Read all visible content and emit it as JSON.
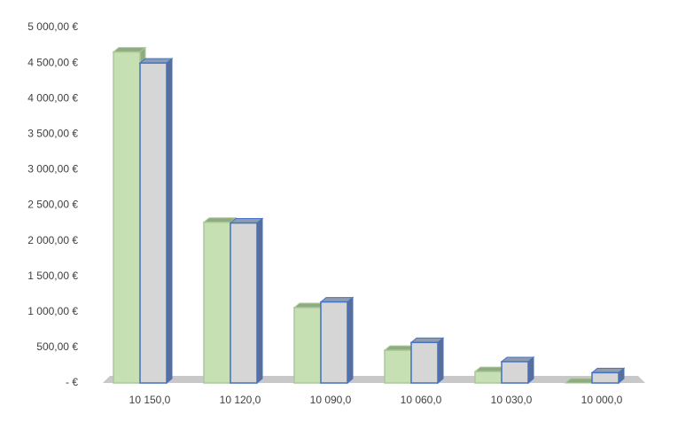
{
  "chart_data": {
    "type": "bar3d",
    "categories": [
      "10 150,0",
      "10 120,0",
      "10 090,0",
      "10 060,0",
      "10 030,0",
      "10 000,0"
    ],
    "series": [
      {
        "color": "#c6e0b4",
        "values": [
          4655,
          2260,
          1060,
          460,
          160,
          0
        ]
      },
      {
        "color": "#d6d6d6",
        "values": [
          4500,
          2250,
          1140,
          570,
          300,
          145
        ]
      }
    ],
    "ylim": [
      0,
      5000
    ],
    "yticks": [
      {
        "value": 0,
        "label": "-  €"
      },
      {
        "value": 500,
        "label": "500,00 €"
      },
      {
        "value": 1000,
        "label": "1 000,00 €"
      },
      {
        "value": 1500,
        "label": "1 500,00 €"
      },
      {
        "value": 2000,
        "label": "2 000,00 €"
      },
      {
        "value": 2500,
        "label": "2 500,00 €"
      },
      {
        "value": 3000,
        "label": "3 000,00 €"
      },
      {
        "value": 3500,
        "label": "3 500,00 €"
      },
      {
        "value": 4000,
        "label": "4 000,00 €"
      },
      {
        "value": 4500,
        "label": "4 500,00 €"
      },
      {
        "value": 5000,
        "label": "5 000,00 €"
      }
    ]
  }
}
